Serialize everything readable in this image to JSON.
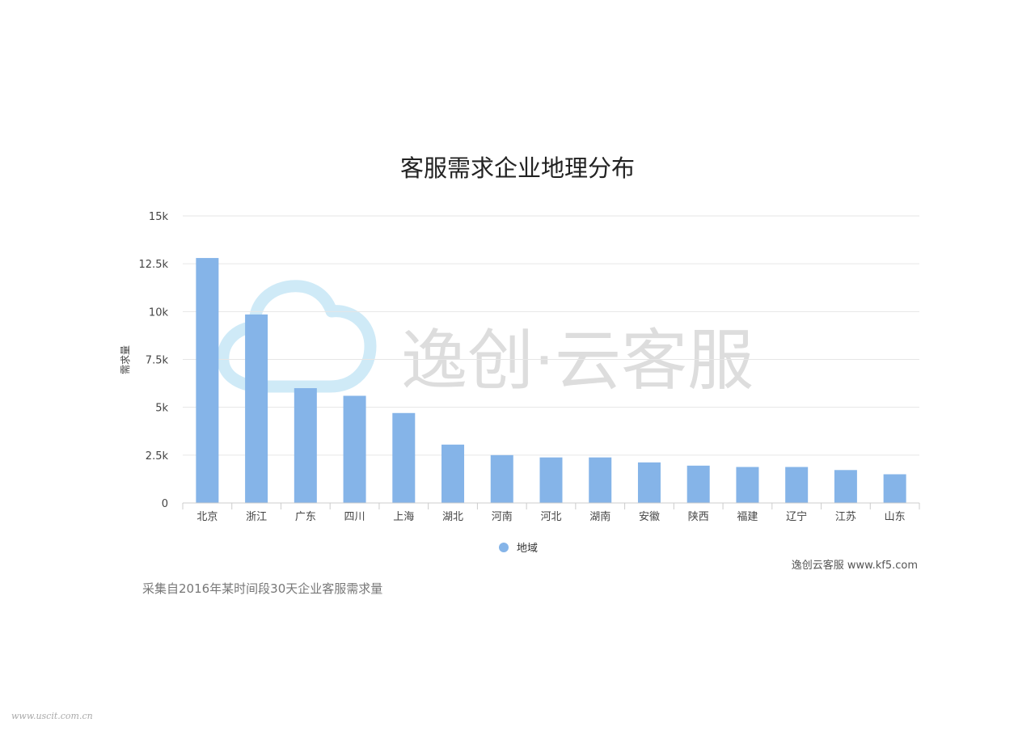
{
  "colors": {
    "bar": "#85b4e8",
    "grid": "#e6e6e6",
    "axis": "#cccccc",
    "watermark": "#cfeaf7"
  },
  "watermark": {
    "text": "逸创·云客服",
    "icon": "cloud-icon"
  },
  "chart_data": {
    "type": "bar",
    "title": "客服需求企业地理分布",
    "xlabel": "",
    "ylabel": "需求量",
    "ylim": [
      0,
      15000
    ],
    "y_ticks": [
      {
        "value": 0,
        "label": "0"
      },
      {
        "value": 2500,
        "label": "2.5k"
      },
      {
        "value": 5000,
        "label": "5k"
      },
      {
        "value": 7500,
        "label": "7.5k"
      },
      {
        "value": 10000,
        "label": "10k"
      },
      {
        "value": 12500,
        "label": "12.5k"
      },
      {
        "value": 15000,
        "label": "15k"
      }
    ],
    "categories": [
      "北京",
      "浙江",
      "广东",
      "四川",
      "上海",
      "湖北",
      "河南",
      "河北",
      "湖南",
      "安徽",
      "陕西",
      "福建",
      "辽宁",
      "江苏",
      "山东"
    ],
    "series": [
      {
        "name": "地域",
        "values": [
          12800,
          9850,
          6000,
          5600,
          4700,
          3050,
          2500,
          2380,
          2380,
          2120,
          1950,
          1880,
          1880,
          1720,
          1500
        ]
      }
    ],
    "grid": true,
    "legend_position": "bottom"
  },
  "credit": "逸创云客服 www.kf5.com",
  "note": "采集自2016年某时间段30天企业客服需求量",
  "site_mark": "www.uscit.com.cn"
}
